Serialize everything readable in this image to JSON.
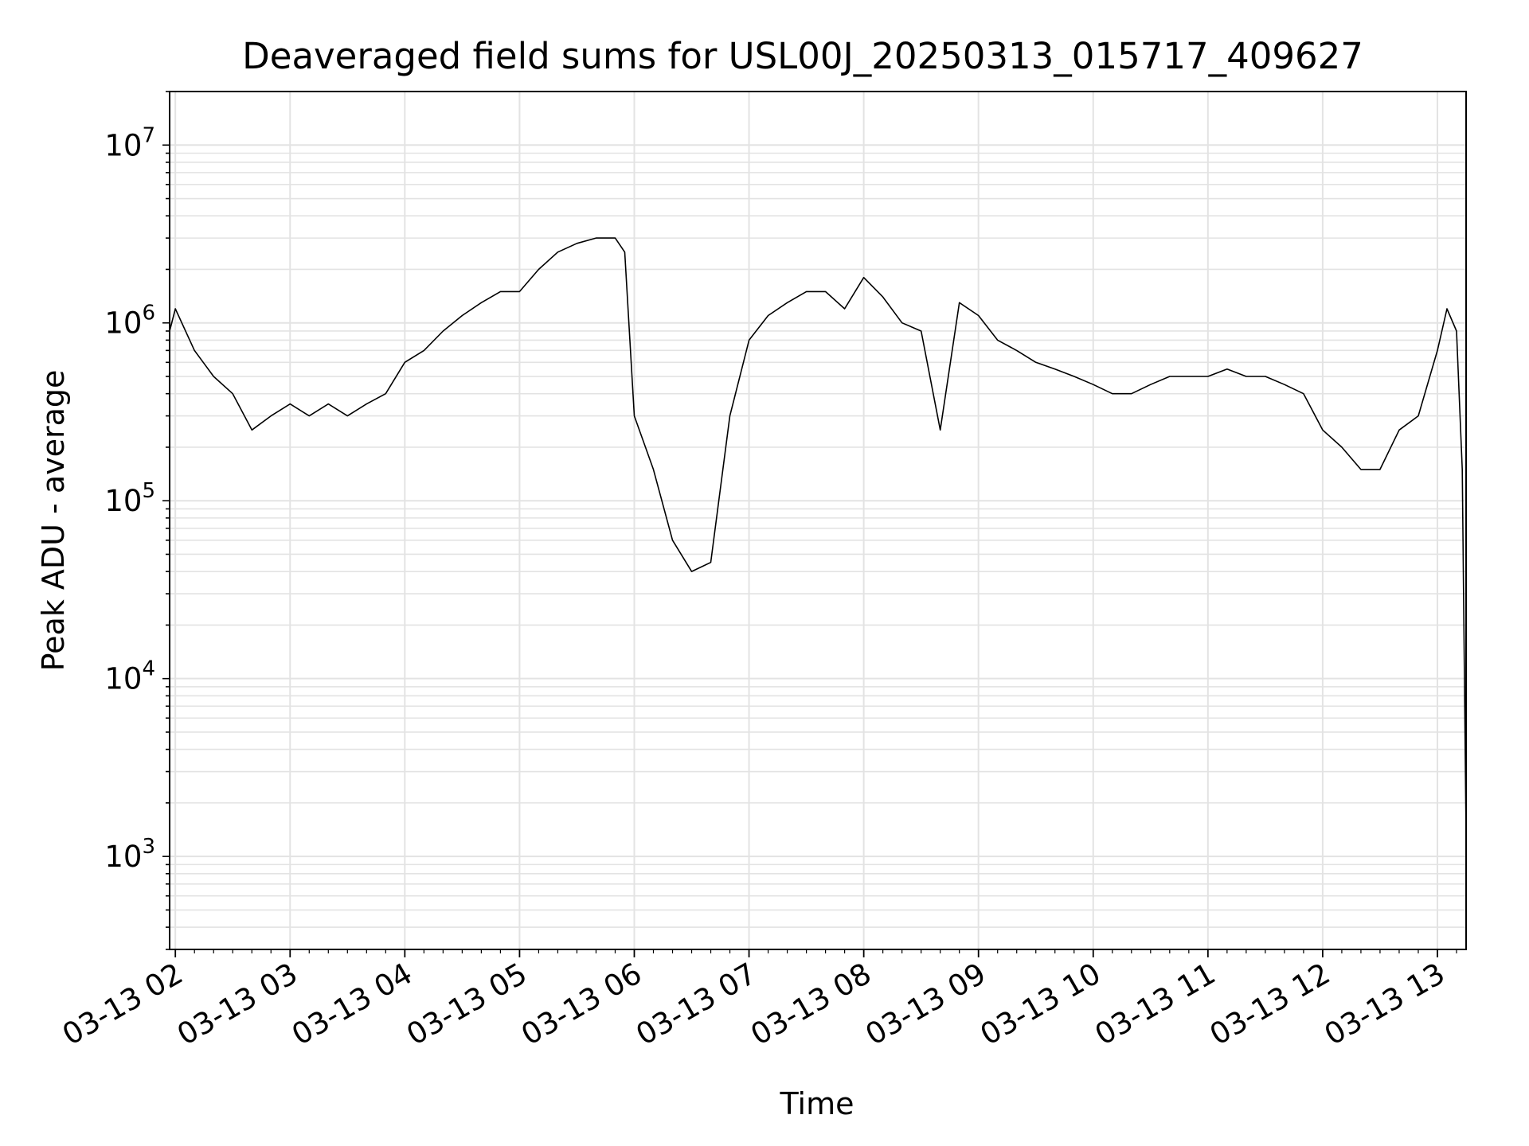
{
  "chart_data": {
    "type": "line",
    "title": "Deaveraged field sums for USL00J_20250313_015717_409627",
    "xlabel": "Time",
    "ylabel": "Peak ADU - average",
    "yscale": "log",
    "ylim": [
      300,
      20000000
    ],
    "xlim": [
      "03-13 01:57",
      "03-13 13:15"
    ],
    "grid": true,
    "line_color": "#000000",
    "grid_color": "#e3e3e3",
    "x_ticks": [
      "03-13 02",
      "03-13 03",
      "03-13 04",
      "03-13 05",
      "03-13 06",
      "03-13 07",
      "03-13 08",
      "03-13 09",
      "03-13 10",
      "03-13 11",
      "03-13 12",
      "03-13 13"
    ],
    "y_ticks": [
      {
        "value": 1000,
        "base": "10",
        "exp": "3"
      },
      {
        "value": 10000,
        "base": "10",
        "exp": "4"
      },
      {
        "value": 100000,
        "base": "10",
        "exp": "5"
      },
      {
        "value": 1000000,
        "base": "10",
        "exp": "6"
      },
      {
        "value": 10000000,
        "base": "10",
        "exp": "7"
      }
    ],
    "series": [
      {
        "x": [
          "03-13 01:57",
          "03-13 02:00",
          "03-13 02:10",
          "03-13 02:20",
          "03-13 02:30",
          "03-13 02:40",
          "03-13 02:50",
          "03-13 03:00",
          "03-13 03:10",
          "03-13 03:20",
          "03-13 03:30",
          "03-13 03:40",
          "03-13 03:50",
          "03-13 04:00",
          "03-13 04:10",
          "03-13 04:20",
          "03-13 04:30",
          "03-13 04:40",
          "03-13 04:50",
          "03-13 05:00",
          "03-13 05:10",
          "03-13 05:20",
          "03-13 05:30",
          "03-13 05:40",
          "03-13 05:50",
          "03-13 05:55",
          "03-13 06:00",
          "03-13 06:10",
          "03-13 06:20",
          "03-13 06:30",
          "03-13 06:40",
          "03-13 06:50",
          "03-13 07:00",
          "03-13 07:10",
          "03-13 07:20",
          "03-13 07:30",
          "03-13 07:40",
          "03-13 07:50",
          "03-13 08:00",
          "03-13 08:10",
          "03-13 08:20",
          "03-13 08:30",
          "03-13 08:40",
          "03-13 08:50",
          "03-13 09:00",
          "03-13 09:10",
          "03-13 09:20",
          "03-13 09:30",
          "03-13 09:40",
          "03-13 09:50",
          "03-13 10:00",
          "03-13 10:10",
          "03-13 10:20",
          "03-13 10:30",
          "03-13 10:40",
          "03-13 10:50",
          "03-13 11:00",
          "03-13 11:10",
          "03-13 11:20",
          "03-13 11:30",
          "03-13 11:40",
          "03-13 11:50",
          "03-13 12:00",
          "03-13 12:10",
          "03-13 12:20",
          "03-13 12:30",
          "03-13 12:40",
          "03-13 12:50",
          "03-13 13:00",
          "03-13 13:05",
          "03-13 13:10",
          "03-13 13:13",
          "03-13 13:15"
        ],
        "y": [
          900000,
          1200000,
          700000,
          500000,
          400000,
          250000,
          300000,
          350000,
          300000,
          350000,
          300000,
          350000,
          400000,
          600000,
          700000,
          900000,
          1100000,
          1300000,
          1500000,
          1500000,
          2000000,
          2500000,
          2800000,
          3000000,
          3000000,
          2500000,
          300000,
          150000,
          60000,
          40000,
          45000,
          300000,
          800000,
          1100000,
          1300000,
          1500000,
          1500000,
          1200000,
          1800000,
          1400000,
          1000000,
          900000,
          250000,
          1300000,
          1100000,
          800000,
          700000,
          600000,
          550000,
          500000,
          450000,
          400000,
          400000,
          450000,
          500000,
          500000,
          500000,
          550000,
          500000,
          500000,
          450000,
          400000,
          250000,
          200000,
          150000,
          150000,
          250000,
          300000,
          700000,
          1200000,
          900000,
          150000,
          1300
        ]
      }
    ]
  }
}
